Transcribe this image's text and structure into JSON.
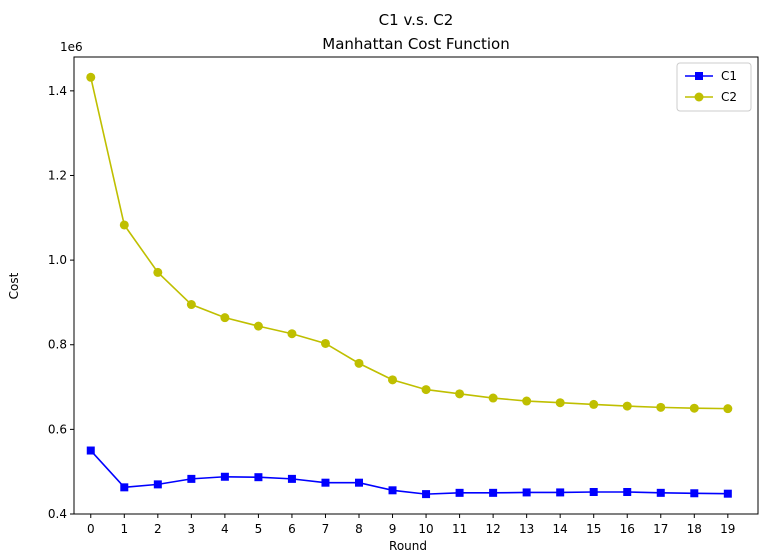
{
  "chart_data": {
    "type": "line",
    "title": "C1 v.s. C2",
    "subtitle": "Manhattan Cost Function",
    "xlabel": "Round",
    "ylabel": "Cost",
    "y_offset_label": "1e6",
    "x": [
      0,
      1,
      2,
      3,
      4,
      5,
      6,
      7,
      8,
      9,
      10,
      11,
      12,
      13,
      14,
      15,
      16,
      17,
      18,
      19
    ],
    "xlim": [
      -0.5,
      19.9
    ],
    "ylim": [
      0.4,
      1.48
    ],
    "y_scale": 1000000,
    "yticks": [
      0.4,
      0.6,
      0.8,
      1.0,
      1.2,
      1.4
    ],
    "ytick_labels": [
      "0.4",
      "0.6",
      "0.8",
      "1.0",
      "1.2",
      "1.4"
    ],
    "grid": false,
    "legend_position": "top-right",
    "series": [
      {
        "name": "C1",
        "color": "#0000ff",
        "marker": "square",
        "values": [
          550000,
          463000,
          470000,
          483000,
          488000,
          487000,
          483000,
          474000,
          474000,
          456000,
          447000,
          450000,
          450000,
          451000,
          451000,
          452000,
          452000,
          450000,
          449000,
          448000
        ]
      },
      {
        "name": "C2",
        "color": "#bfbf00",
        "marker": "circle",
        "values": [
          1432000,
          1083000,
          971000,
          895000,
          864000,
          844000,
          826000,
          803000,
          756000,
          717000,
          694000,
          684000,
          674000,
          667000,
          663000,
          659000,
          655000,
          652000,
          650000,
          649000
        ]
      }
    ]
  }
}
